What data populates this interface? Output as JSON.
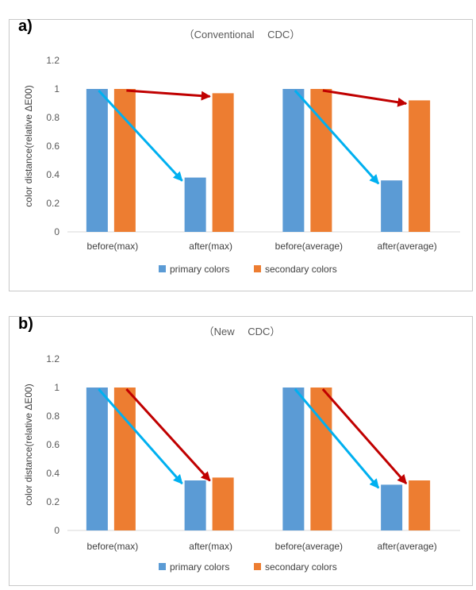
{
  "chart_data": [
    {
      "type": "bar",
      "panel_label": "a)",
      "title": "（Conventional　 CDC）",
      "ylabel": "color distance(relative ΔE00)",
      "xlabel": "",
      "ylim": [
        0,
        1.2
      ],
      "yticks": [
        0,
        0.2,
        0.4,
        0.6,
        0.8,
        1,
        1.2
      ],
      "ytick_labels": [
        "0",
        "0.2",
        "0.4",
        "0.6",
        "0.8",
        "1",
        "1.2"
      ],
      "categories": [
        "before(max)",
        "after(max)",
        "before(average)",
        "after(average)"
      ],
      "series": [
        {
          "name": "primary colors",
          "color": "#5b9bd5",
          "values": [
            1.0,
            0.38,
            1.0,
            0.36
          ]
        },
        {
          "name": "secondary colors",
          "color": "#ed7d31",
          "values": [
            1.0,
            0.97,
            1.0,
            0.92
          ]
        }
      ],
      "legend_position": "bottom",
      "grid": false,
      "annotations": [
        {
          "kind": "arrow",
          "color": "#00b0f0",
          "from": {
            "category": "before(max)",
            "series": "primary colors",
            "value": 1.0
          },
          "to": {
            "category": "after(max)",
            "series": "primary colors",
            "value": 0.38
          }
        },
        {
          "kind": "arrow",
          "color": "#c00000",
          "from": {
            "category": "before(max)",
            "series": "secondary colors",
            "value": 1.0
          },
          "to": {
            "category": "after(max)",
            "series": "secondary colors",
            "value": 0.97
          }
        },
        {
          "kind": "arrow",
          "color": "#00b0f0",
          "from": {
            "category": "before(average)",
            "series": "primary colors",
            "value": 1.0
          },
          "to": {
            "category": "after(average)",
            "series": "primary colors",
            "value": 0.36
          }
        },
        {
          "kind": "arrow",
          "color": "#c00000",
          "from": {
            "category": "before(average)",
            "series": "secondary colors",
            "value": 1.0
          },
          "to": {
            "category": "after(average)",
            "series": "secondary colors",
            "value": 0.92
          }
        }
      ]
    },
    {
      "type": "bar",
      "panel_label": "b)",
      "title": "（New　 CDC）",
      "ylabel": "color distance(relative ΔE00)",
      "xlabel": "",
      "ylim": [
        0,
        1.2
      ],
      "yticks": [
        0,
        0.2,
        0.4,
        0.6,
        0.8,
        1,
        1.2
      ],
      "ytick_labels": [
        "0",
        "0.2",
        "0.4",
        "0.6",
        "0.8",
        "1",
        "1.2"
      ],
      "categories": [
        "before(max)",
        "after(max)",
        "before(average)",
        "after(average)"
      ],
      "series": [
        {
          "name": "primary colors",
          "color": "#5b9bd5",
          "values": [
            1.0,
            0.35,
            1.0,
            0.32
          ]
        },
        {
          "name": "secondary colors",
          "color": "#ed7d31",
          "values": [
            1.0,
            0.37,
            1.0,
            0.35
          ]
        }
      ],
      "legend_position": "bottom",
      "grid": false,
      "annotations": [
        {
          "kind": "arrow",
          "color": "#00b0f0",
          "from": {
            "category": "before(max)",
            "series": "primary colors",
            "value": 1.0
          },
          "to": {
            "category": "after(max)",
            "series": "primary colors",
            "value": 0.35
          }
        },
        {
          "kind": "arrow",
          "color": "#c00000",
          "from": {
            "category": "before(max)",
            "series": "secondary colors",
            "value": 1.0
          },
          "to": {
            "category": "after(max)",
            "series": "secondary colors",
            "value": 0.37
          }
        },
        {
          "kind": "arrow",
          "color": "#00b0f0",
          "from": {
            "category": "before(average)",
            "series": "primary colors",
            "value": 1.0
          },
          "to": {
            "category": "after(average)",
            "series": "primary colors",
            "value": 0.32
          }
        },
        {
          "kind": "arrow",
          "color": "#c00000",
          "from": {
            "category": "before(average)",
            "series": "secondary colors",
            "value": 1.0
          },
          "to": {
            "category": "after(average)",
            "series": "secondary colors",
            "value": 0.35
          }
        }
      ]
    }
  ]
}
